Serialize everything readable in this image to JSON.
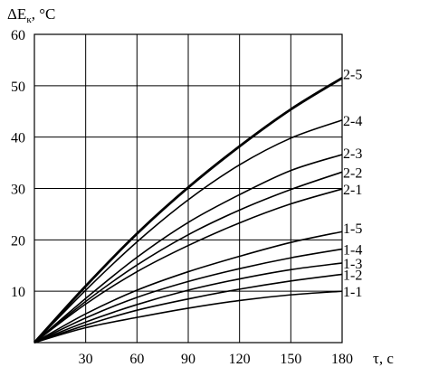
{
  "chart_data": {
    "type": "line",
    "ylabel": "ΔE",
    "ylabel_subscript": "к",
    "ylabel_unit": ", °C",
    "xlabel": "τ, с",
    "xlim": [
      0,
      180
    ],
    "ylim": [
      0,
      60
    ],
    "x_ticks": [
      30,
      60,
      90,
      120,
      150,
      180
    ],
    "y_ticks": [
      10,
      20,
      30,
      40,
      50,
      60
    ],
    "grid": true,
    "series": [
      {
        "name": "1-1",
        "x": [
          0,
          30,
          60,
          90,
          120,
          150,
          180
        ],
        "y": [
          0,
          2.9,
          4.9,
          6.7,
          8.2,
          9.3,
          10.0
        ],
        "bold": false
      },
      {
        "name": "1-2",
        "x": [
          0,
          30,
          60,
          90,
          120,
          150,
          180
        ],
        "y": [
          0,
          3.4,
          6.3,
          8.5,
          10.4,
          12.0,
          13.3
        ],
        "bold": false
      },
      {
        "name": "1-3",
        "x": [
          0,
          30,
          60,
          90,
          120,
          150,
          180
        ],
        "y": [
          0,
          4.0,
          7.4,
          10.2,
          12.4,
          14.2,
          15.5
        ],
        "bold": false
      },
      {
        "name": "1-4",
        "x": [
          0,
          30,
          60,
          90,
          120,
          150,
          180
        ],
        "y": [
          0,
          4.8,
          8.8,
          11.9,
          14.4,
          16.5,
          18.2
        ],
        "bold": false
      },
      {
        "name": "1-5",
        "x": [
          0,
          30,
          60,
          90,
          120,
          150,
          180
        ],
        "y": [
          0,
          5.6,
          10.2,
          13.8,
          16.8,
          19.5,
          21.6
        ],
        "bold": false
      },
      {
        "name": "2-1",
        "x": [
          0,
          30,
          60,
          90,
          120,
          150,
          180
        ],
        "y": [
          0,
          7.5,
          13.8,
          18.9,
          23.3,
          27.0,
          29.9
        ],
        "bold": false
      },
      {
        "name": "2-2",
        "x": [
          0,
          30,
          60,
          90,
          120,
          150,
          180
        ],
        "y": [
          0,
          8.0,
          15.1,
          21.0,
          25.8,
          29.8,
          33.2
        ],
        "bold": false
      },
      {
        "name": "2-3",
        "x": [
          0,
          30,
          60,
          90,
          120,
          150,
          180
        ],
        "y": [
          0,
          8.6,
          16.6,
          23.4,
          28.8,
          33.5,
          36.6
        ],
        "bold": false
      },
      {
        "name": "2-4",
        "x": [
          0,
          30,
          60,
          90,
          120,
          150,
          180
        ],
        "y": [
          0,
          10.2,
          19.6,
          27.8,
          34.6,
          39.8,
          43.3
        ],
        "bold": false
      },
      {
        "name": "2-5",
        "x": [
          0,
          30,
          60,
          90,
          120,
          150,
          180
        ],
        "y": [
          0,
          11.0,
          21.2,
          30.2,
          38.2,
          45.4,
          51.5
        ],
        "bold": true
      }
    ]
  }
}
